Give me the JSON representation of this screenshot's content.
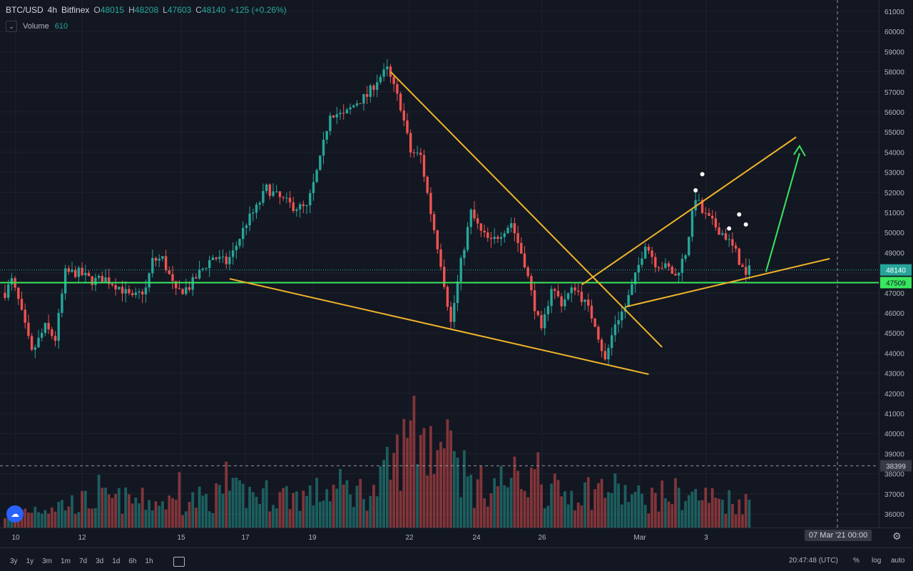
{
  "header": {
    "symbol": "BTC/USD",
    "interval": "4h",
    "exchange": "Bitfinex",
    "o_label": "O",
    "o": "48015",
    "h_label": "H",
    "h": "48208",
    "l_label": "L",
    "l": "47603",
    "c_label": "C",
    "c": "48140",
    "change": "+125 (+0.26%)"
  },
  "volume_legend": {
    "label": "Volume",
    "value": "610"
  },
  "range_buttons": [
    "3y",
    "1y",
    "3m",
    "1m",
    "7d",
    "3d",
    "1d",
    "6h",
    "1h"
  ],
  "footer": {
    "clock": "20:47:48 (UTC)",
    "percent": "%",
    "log": "log",
    "auto": "auto"
  },
  "crosshair_date": "07 Mar '21   00:00",
  "colors": {
    "bg": "#131722",
    "up": "#26a69a",
    "down": "#ef5350",
    "trend": "#f0b429",
    "support": "#39e75f",
    "arrow": "#39e75f"
  },
  "chart_data": {
    "type": "candlestick",
    "ylim": [
      35300,
      61300
    ],
    "y_ticks": [
      36000,
      37000,
      38000,
      39000,
      40000,
      41000,
      42000,
      43000,
      44000,
      45000,
      46000,
      47000,
      48000,
      49000,
      50000,
      51000,
      52000,
      53000,
      54000,
      55000,
      56000,
      57000,
      58000,
      59000,
      60000,
      61000
    ],
    "x_ticks": [
      "10",
      "12",
      "15",
      "17",
      "19",
      "22",
      "24",
      "26",
      "Mar",
      "3"
    ],
    "price_labels": [
      {
        "value": 48140,
        "text": "48140"
      },
      {
        "value": 47509,
        "text": "47509"
      },
      {
        "value": 38399,
        "text": "38399"
      }
    ],
    "support_level": 47509,
    "crosshair_price": 38399,
    "markers": [
      {
        "bar": 208,
        "price": 52900
      },
      {
        "bar": 206,
        "price": 52100
      },
      {
        "bar": 219,
        "price": 50900
      },
      {
        "bar": 216,
        "price": 50200
      },
      {
        "bar": 221,
        "price": 50400
      }
    ],
    "trendlines": [
      {
        "from": {
          "bar": 115,
          "price": 58000
        },
        "to": {
          "bar": 196,
          "price": 44300
        }
      },
      {
        "from": {
          "bar": 67,
          "price": 47700
        },
        "to": {
          "bar": 192,
          "price": 42950
        }
      },
      {
        "from": {
          "bar": 172,
          "price": 47400
        },
        "to": {
          "bar": 236,
          "price": 54750
        }
      },
      {
        "from": {
          "bar": 185,
          "price": 46300
        },
        "to": {
          "bar": 246,
          "price": 48700
        }
      }
    ],
    "arrow": {
      "from": {
        "bar": 227,
        "price": 48050
      },
      "to": {
        "bar": 237,
        "price": 54300
      }
    },
    "anchors": [
      [
        0,
        47000
      ],
      [
        2,
        47600
      ],
      [
        4,
        46600
      ],
      [
        8,
        44000
      ],
      [
        12,
        45300
      ],
      [
        15,
        44700
      ],
      [
        18,
        48000
      ],
      [
        22,
        48000
      ],
      [
        26,
        47600
      ],
      [
        30,
        47700
      ],
      [
        34,
        47300
      ],
      [
        38,
        46700
      ],
      [
        42,
        47200
      ],
      [
        44,
        48600
      ],
      [
        47,
        48700
      ],
      [
        51,
        47000
      ],
      [
        55,
        47300
      ],
      [
        58,
        48000
      ],
      [
        62,
        48800
      ],
      [
        66,
        48500
      ],
      [
        68,
        49000
      ],
      [
        72,
        50500
      ],
      [
        75,
        51200
      ],
      [
        78,
        52200
      ],
      [
        82,
        51700
      ],
      [
        86,
        51300
      ],
      [
        90,
        51200
      ],
      [
        94,
        53600
      ],
      [
        97,
        56000
      ],
      [
        101,
        55800
      ],
      [
        105,
        56500
      ],
      [
        108,
        56800
      ],
      [
        111,
        57600
      ],
      [
        114,
        58100
      ],
      [
        118,
        56300
      ],
      [
        121,
        54000
      ],
      [
        124,
        53800
      ],
      [
        127,
        51000
      ],
      [
        130,
        48500
      ],
      [
        133,
        45500
      ],
      [
        136,
        48500
      ],
      [
        139,
        51000
      ],
      [
        142,
        50000
      ],
      [
        145,
        49500
      ],
      [
        148,
        50000
      ],
      [
        151,
        50500
      ],
      [
        155,
        48500
      ],
      [
        157,
        47000
      ],
      [
        160,
        45000
      ],
      [
        163,
        47300
      ],
      [
        166,
        46500
      ],
      [
        170,
        47300
      ],
      [
        173,
        46500
      ],
      [
        176,
        45500
      ],
      [
        179,
        43600
      ],
      [
        182,
        45500
      ],
      [
        185,
        46300
      ],
      [
        188,
        47800
      ],
      [
        191,
        49500
      ],
      [
        194,
        48500
      ],
      [
        198,
        48200
      ],
      [
        200,
        47800
      ],
      [
        203,
        49000
      ],
      [
        206,
        51800
      ],
      [
        208,
        51000
      ],
      [
        212,
        50300
      ],
      [
        215,
        49800
      ],
      [
        218,
        49000
      ],
      [
        221,
        47800
      ],
      [
        222,
        48140
      ]
    ],
    "volume_anchors": [
      [
        0,
        12
      ],
      [
        10,
        18
      ],
      [
        30,
        25
      ],
      [
        50,
        22
      ],
      [
        70,
        30
      ],
      [
        90,
        28
      ],
      [
        100,
        35
      ],
      [
        110,
        30
      ],
      [
        120,
        75
      ],
      [
        130,
        80
      ],
      [
        140,
        35
      ],
      [
        155,
        45
      ],
      [
        165,
        30
      ],
      [
        180,
        35
      ],
      [
        190,
        25
      ],
      [
        200,
        30
      ],
      [
        222,
        22
      ]
    ],
    "volume_spikes": [
      {
        "bar": 122,
        "value": 100
      },
      {
        "bar": 132,
        "value": 82
      },
      {
        "bar": 131,
        "value": 60
      },
      {
        "bar": 134,
        "value": 58
      },
      {
        "bar": 159,
        "value": 57
      },
      {
        "bar": 66,
        "value": 50
      },
      {
        "bar": 28,
        "value": 40
      },
      {
        "bar": 52,
        "value": 42
      }
    ]
  }
}
